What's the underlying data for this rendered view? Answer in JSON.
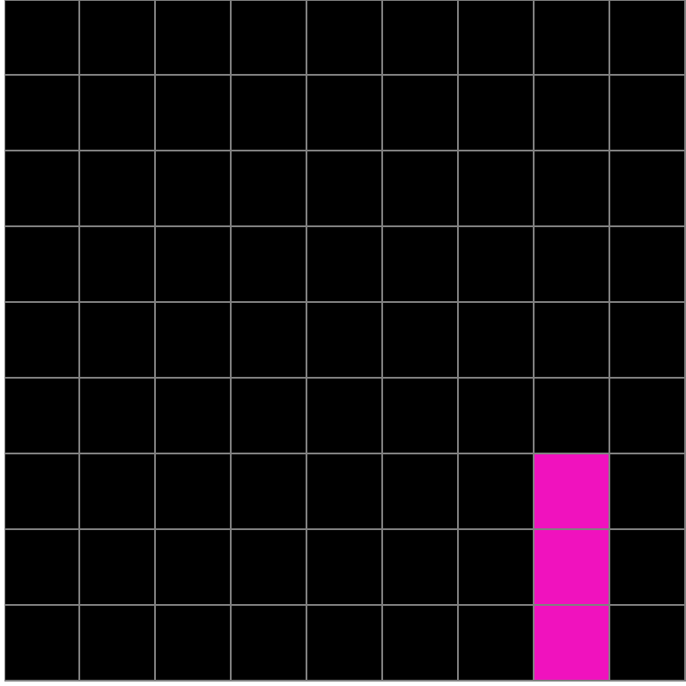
{
  "grid": {
    "rows": 9,
    "cols": 9,
    "background_color": "#000000",
    "line_color": "#808080",
    "fill_color": "#f012be",
    "filled_cells": [
      {
        "row": 6,
        "col": 7
      },
      {
        "row": 7,
        "col": 7
      },
      {
        "row": 8,
        "col": 7
      }
    ]
  }
}
